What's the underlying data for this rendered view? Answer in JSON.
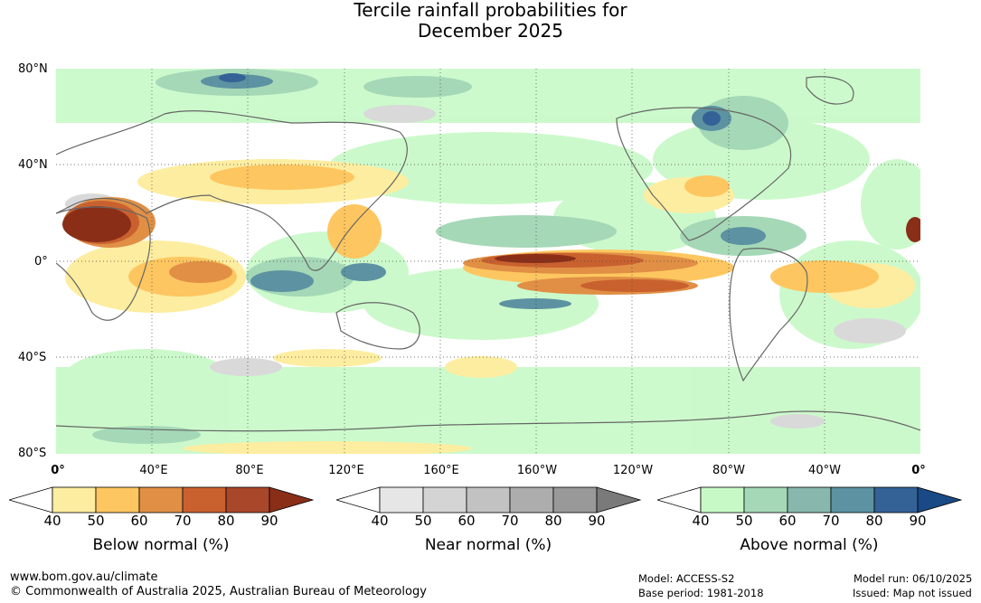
{
  "title": {
    "line1": "Tercile rainfall probabilities for",
    "line2": "December 2025"
  },
  "axes": {
    "lat_labels": [
      "80°N",
      "40°N",
      "0°",
      "40°S",
      "80°S"
    ],
    "lon_labels": [
      "0°",
      "40°E",
      "80°E",
      "120°E",
      "160°E",
      "160°W",
      "120°W",
      "80°W",
      "40°W",
      "0°"
    ]
  },
  "legends": [
    {
      "title": "Below normal (%)",
      "ticks": [
        "40",
        "50",
        "60",
        "70",
        "80",
        "90"
      ],
      "colors": [
        "#ffffff",
        "#fdeda0",
        "#fec660",
        "#e08f45",
        "#c9612f",
        "#a9472a",
        "#8a2e18"
      ]
    },
    {
      "title": "Near normal (%)",
      "ticks": [
        "40",
        "50",
        "60",
        "70",
        "80",
        "90"
      ],
      "colors": [
        "#ffffff",
        "#e6e6e6",
        "#d4d4d4",
        "#c2c2c2",
        "#adadad",
        "#999999",
        "#7a7a7a"
      ]
    },
    {
      "title": "Above normal (%)",
      "ticks": [
        "40",
        "50",
        "60",
        "70",
        "80",
        "90"
      ],
      "colors": [
        "#ffffff",
        "#c7f9c6",
        "#a5d8b7",
        "#88b8ad",
        "#5c92a1",
        "#346196",
        "#1a4a85"
      ]
    }
  ],
  "footer": {
    "url": "www.bom.gov.au/climate",
    "copyright": "© Commonwealth of Australia 2025, Australian Bureau of Meteorology",
    "model": "Model: ACCESS-S2",
    "base_period": "Base period: 1981-2018",
    "model_run": "Model run: 06/10/2025",
    "issued": "Issued: Map not issued"
  }
}
